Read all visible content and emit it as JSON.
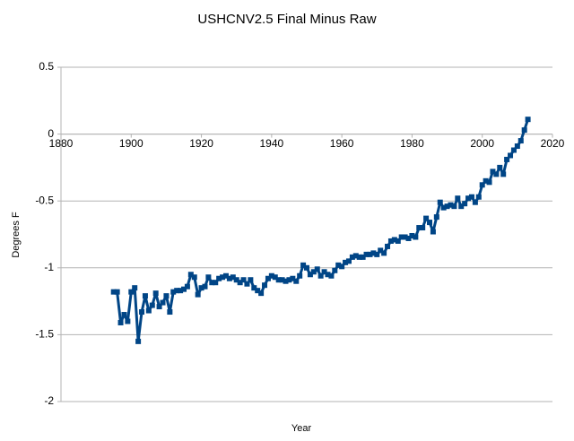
{
  "chart_data": {
    "type": "line",
    "title": "USHCNV2.5 Final Minus Raw",
    "x_label": "Year",
    "y_label": "Degrees F",
    "x": [
      1895,
      1896,
      1897,
      1898,
      1899,
      1900,
      1901,
      1902,
      1903,
      1904,
      1905,
      1906,
      1907,
      1908,
      1909,
      1910,
      1911,
      1912,
      1913,
      1914,
      1915,
      1916,
      1917,
      1918,
      1919,
      1920,
      1921,
      1922,
      1923,
      1924,
      1925,
      1926,
      1927,
      1928,
      1929,
      1930,
      1931,
      1932,
      1933,
      1934,
      1935,
      1936,
      1937,
      1938,
      1939,
      1940,
      1941,
      1942,
      1943,
      1944,
      1945,
      1946,
      1947,
      1948,
      1949,
      1950,
      1951,
      1952,
      1953,
      1954,
      1955,
      1956,
      1957,
      1958,
      1959,
      1960,
      1961,
      1962,
      1963,
      1964,
      1965,
      1966,
      1967,
      1968,
      1969,
      1970,
      1971,
      1972,
      1973,
      1974,
      1975,
      1976,
      1977,
      1978,
      1979,
      1980,
      1981,
      1982,
      1983,
      1984,
      1985,
      1986,
      1987,
      1988,
      1989,
      1990,
      1991,
      1992,
      1993,
      1994,
      1995,
      1996,
      1997,
      1998,
      1999,
      2000,
      2001,
      2002,
      2003,
      2004,
      2005,
      2006,
      2007,
      2008,
      2009,
      2010,
      2011,
      2012,
      2013
    ],
    "series": [
      {
        "color": "#004586",
        "values": [
          -1.18,
          -1.18,
          -1.41,
          -1.35,
          -1.4,
          -1.18,
          -1.15,
          -1.55,
          -1.33,
          -1.21,
          -1.32,
          -1.28,
          -1.19,
          -1.29,
          -1.26,
          -1.21,
          -1.33,
          -1.18,
          -1.17,
          -1.17,
          -1.16,
          -1.14,
          -1.05,
          -1.07,
          -1.2,
          -1.15,
          -1.14,
          -1.07,
          -1.11,
          -1.11,
          -1.08,
          -1.07,
          -1.06,
          -1.08,
          -1.07,
          -1.09,
          -1.11,
          -1.09,
          -1.12,
          -1.09,
          -1.15,
          -1.17,
          -1.19,
          -1.13,
          -1.08,
          -1.06,
          -1.07,
          -1.09,
          -1.09,
          -1.1,
          -1.09,
          -1.08,
          -1.1,
          -1.06,
          -0.98,
          -1.0,
          -1.05,
          -1.03,
          -1.01,
          -1.06,
          -1.03,
          -1.05,
          -1.06,
          -1.02,
          -0.98,
          -0.99,
          -0.96,
          -0.95,
          -0.92,
          -0.91,
          -0.92,
          -0.92,
          -0.9,
          -0.9,
          -0.89,
          -0.9,
          -0.87,
          -0.89,
          -0.84,
          -0.8,
          -0.79,
          -0.8,
          -0.77,
          -0.77,
          -0.78,
          -0.76,
          -0.77,
          -0.7,
          -0.7,
          -0.63,
          -0.66,
          -0.73,
          -0.62,
          -0.51,
          -0.55,
          -0.54,
          -0.53,
          -0.54,
          -0.48,
          -0.54,
          -0.52,
          -0.48,
          -0.47,
          -0.51,
          -0.47,
          -0.38,
          -0.35,
          -0.36,
          -0.28,
          -0.3,
          -0.25,
          -0.3,
          -0.19,
          -0.16,
          -0.12,
          -0.09,
          -0.05,
          0.03,
          0.11
        ]
      }
    ],
    "xlim": [
      1880,
      2020
    ],
    "xticks": [
      1880,
      1900,
      1920,
      1940,
      1960,
      1980,
      2000,
      2020
    ],
    "ylim": [
      -2,
      0.5
    ],
    "yticks": [
      -2,
      -1.5,
      -1,
      -0.5,
      0,
      0.5
    ],
    "grid": true
  }
}
